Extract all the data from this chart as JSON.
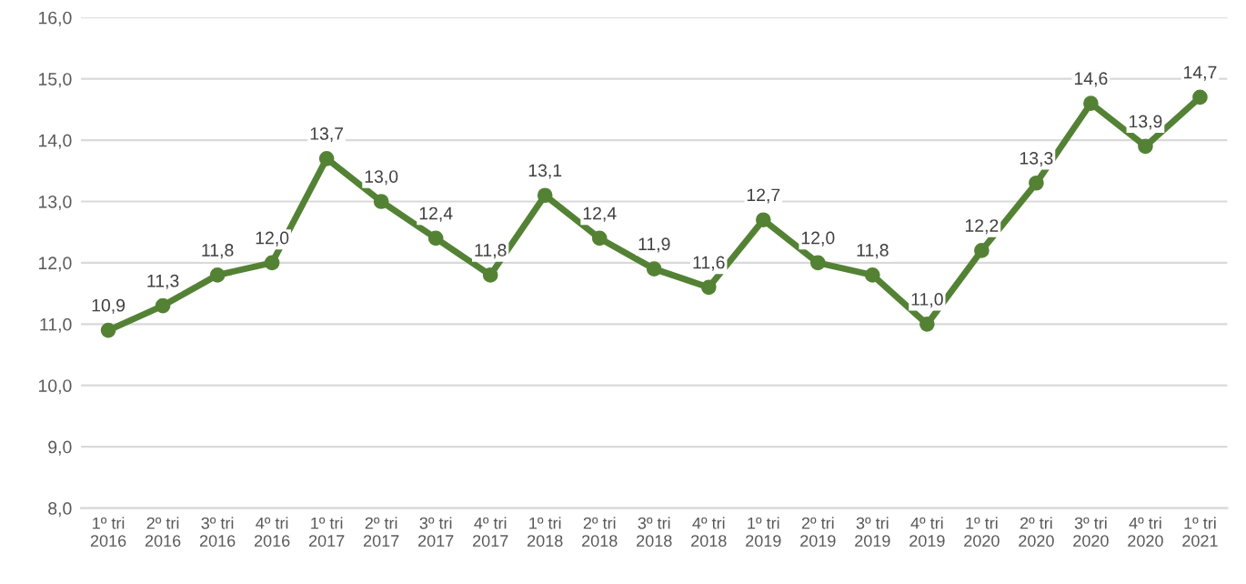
{
  "chart_data": {
    "type": "line",
    "categories": [
      "1º tri\n2016",
      "2º tri\n2016",
      "3º tri\n2016",
      "4º tri\n2016",
      "1º tri\n2017",
      "2º tri\n2017",
      "3º tri\n2017",
      "4º tri\n2017",
      "1º tri\n2018",
      "2º tri\n2018",
      "3º tri\n2018",
      "4º tri\n2018",
      "1º tri\n2019",
      "2º tri\n2019",
      "3º tri\n2019",
      "4º tri\n2019",
      "1º tri\n2020",
      "2º tri\n2020",
      "3º tri\n2020",
      "4º tri\n2020",
      "1º tri\n2021"
    ],
    "values": [
      10.9,
      11.3,
      11.8,
      12.0,
      13.7,
      13.0,
      12.4,
      11.8,
      13.1,
      12.4,
      11.9,
      11.6,
      12.7,
      12.0,
      11.8,
      11.0,
      12.2,
      13.3,
      14.6,
      13.9,
      14.7
    ],
    "value_labels": [
      "10,9",
      "11,3",
      "11,8",
      "12,0",
      "13,7",
      "13,0",
      "12,4",
      "11,8",
      "13,1",
      "12,4",
      "11,9",
      "11,6",
      "12,7",
      "12,0",
      "11,8",
      "11,0",
      "12,2",
      "13,3",
      "14,6",
      "13,9",
      "14,7"
    ],
    "color": "#548235",
    "ylim": [
      8,
      16
    ],
    "yticks": [
      {
        "value": 8,
        "label": "8,0"
      },
      {
        "value": 9,
        "label": "9,0"
      },
      {
        "value": 10,
        "label": "10,0"
      },
      {
        "value": 11,
        "label": "11,0"
      },
      {
        "value": 12,
        "label": "12,0"
      },
      {
        "value": 13,
        "label": "13,0"
      },
      {
        "value": 14,
        "label": "14,0"
      },
      {
        "value": 15,
        "label": "15,0"
      },
      {
        "value": 16,
        "label": "16,0"
      }
    ],
    "grid": "y",
    "marker": "circle",
    "line_style": "solid",
    "legend": false
  }
}
